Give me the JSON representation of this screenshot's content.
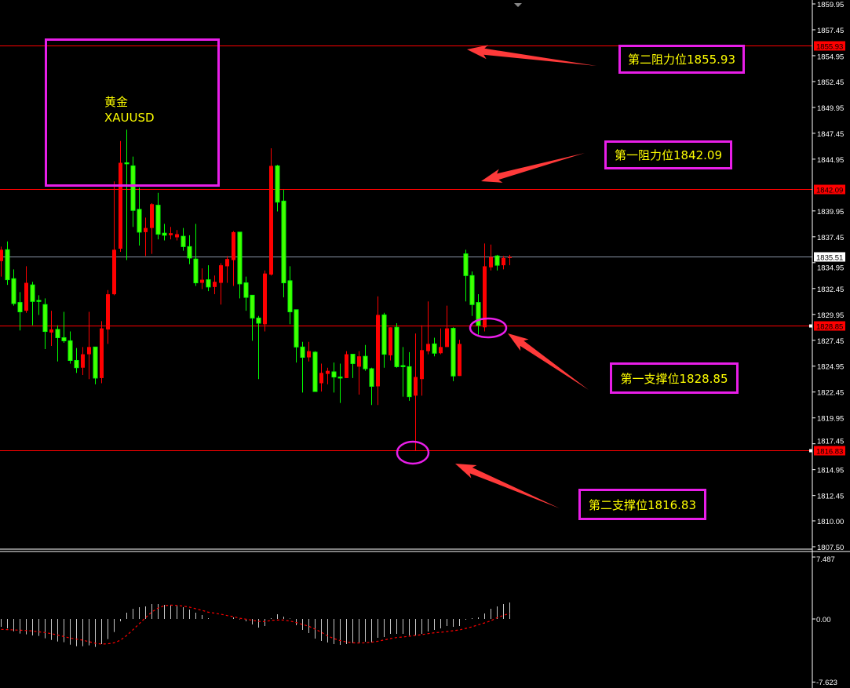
{
  "chart_data": {
    "type": "candlestick",
    "symbol_label": "黄金",
    "symbol": "XAUUSD",
    "up_color": "#ff0000",
    "down_color": "#00ff00",
    "ylim": [
      1807.5,
      1859.95
    ],
    "y_ticks": [
      "1859.95",
      "1857.45",
      "1854.95",
      "1852.45",
      "1849.95",
      "1847.45",
      "1844.95",
      "1839.95",
      "1837.45",
      "1834.95",
      "1832.45",
      "1829.95",
      "1827.45",
      "1824.95",
      "1822.45",
      "1819.95",
      "1817.45",
      "1814.95",
      "1812.45",
      "1810.00",
      "1807.50"
    ],
    "current_price": "1835.51",
    "levels": [
      {
        "price": "1855.93",
        "label": "第二阻力位1855.93",
        "color": "#ff0000"
      },
      {
        "price": "1842.09",
        "label": "第一阻力位1842.09",
        "color": "#ff0000"
      },
      {
        "price": "1828.85",
        "label": "第一支撑位1828.85",
        "color": "#ff0000"
      },
      {
        "price": "1816.83",
        "label": "第二支撑位1816.83",
        "color": "#ff0000"
      }
    ],
    "candles_ohlc": [
      [
        1835.1,
        1836.5,
        1833.6,
        1836.2
      ],
      [
        1836.2,
        1837.0,
        1832.8,
        1833.3
      ],
      [
        1833.4,
        1834.3,
        1830.8,
        1831.0
      ],
      [
        1831.1,
        1832.1,
        1828.4,
        1830.2
      ],
      [
        1830.3,
        1834.6,
        1830.1,
        1833.0
      ],
      [
        1832.8,
        1833.1,
        1828.9,
        1831.2
      ],
      [
        1831.3,
        1831.8,
        1829.9,
        1831.2
      ],
      [
        1830.9,
        1831.5,
        1826.6,
        1828.3
      ],
      [
        1828.2,
        1830.3,
        1826.9,
        1828.5
      ],
      [
        1828.5,
        1828.9,
        1825.4,
        1827.7
      ],
      [
        1827.7,
        1830.2,
        1827.2,
        1827.4
      ],
      [
        1827.4,
        1828.3,
        1825.2,
        1825.5
      ],
      [
        1825.5,
        1826.7,
        1824.3,
        1824.8
      ],
      [
        1824.8,
        1826.8,
        1824.1,
        1826.1
      ],
      [
        1826.1,
        1830.2,
        1823.7,
        1826.8
      ],
      [
        1826.8,
        1826.8,
        1823.2,
        1823.8
      ],
      [
        1823.8,
        1829.3,
        1823.3,
        1828.6
      ],
      [
        1828.5,
        1832.3,
        1827.1,
        1831.9
      ],
      [
        1831.9,
        1842.8,
        1831.8,
        1836.2
      ],
      [
        1836.3,
        1846.7,
        1836.0,
        1844.6
      ],
      [
        1844.6,
        1847.8,
        1835.2,
        1844.5
      ],
      [
        1844.3,
        1845.2,
        1838.4,
        1840.0
      ],
      [
        1840.1,
        1842.2,
        1836.6,
        1837.9
      ],
      [
        1837.9,
        1839.3,
        1835.6,
        1838.3
      ],
      [
        1838.3,
        1840.7,
        1835.8,
        1840.6
      ],
      [
        1840.5,
        1841.7,
        1837.2,
        1837.7
      ],
      [
        1837.8,
        1838.7,
        1837.1,
        1837.6
      ],
      [
        1837.6,
        1838.4,
        1837.2,
        1837.8
      ],
      [
        1837.4,
        1838.1,
        1837.1,
        1837.7
      ],
      [
        1837.5,
        1838.3,
        1836.1,
        1836.5
      ],
      [
        1836.5,
        1837.6,
        1834.8,
        1835.4
      ],
      [
        1835.3,
        1838.7,
        1832.7,
        1833.0
      ],
      [
        1833.0,
        1834.4,
        1832.4,
        1833.3
      ],
      [
        1833.3,
        1834.7,
        1832.2,
        1832.6
      ],
      [
        1832.6,
        1833.7,
        1831.9,
        1833.1
      ],
      [
        1833.0,
        1834.9,
        1830.9,
        1834.7
      ],
      [
        1834.6,
        1835.6,
        1833.0,
        1835.3
      ],
      [
        1835.2,
        1838.0,
        1832.7,
        1837.9
      ],
      [
        1837.9,
        1837.9,
        1831.5,
        1832.9
      ],
      [
        1833.0,
        1833.6,
        1830.3,
        1831.6
      ],
      [
        1831.8,
        1831.8,
        1827.4,
        1829.6
      ],
      [
        1829.6,
        1829.8,
        1823.7,
        1829.1
      ],
      [
        1829.0,
        1834.2,
        1828.3,
        1833.9
      ],
      [
        1833.8,
        1846.0,
        1833.7,
        1844.3
      ],
      [
        1844.3,
        1844.4,
        1839.9,
        1840.8
      ],
      [
        1840.9,
        1842.0,
        1831.6,
        1833.0
      ],
      [
        1833.2,
        1834.6,
        1829.0,
        1830.2
      ],
      [
        1830.4,
        1830.4,
        1825.3,
        1826.8
      ],
      [
        1826.8,
        1827.3,
        1822.4,
        1825.8
      ],
      [
        1825.8,
        1827.3,
        1825.4,
        1826.4
      ],
      [
        1826.3,
        1826.4,
        1822.5,
        1822.5
      ],
      [
        1823.3,
        1825.2,
        1822.5,
        1824.3
      ],
      [
        1824.2,
        1824.8,
        1823.2,
        1824.5
      ],
      [
        1824.4,
        1825.3,
        1822.4,
        1823.9
      ],
      [
        1823.9,
        1825.2,
        1821.4,
        1823.8
      ],
      [
        1823.8,
        1826.4,
        1823.8,
        1826.1
      ],
      [
        1826.1,
        1826.1,
        1823.8,
        1825.2
      ],
      [
        1824.9,
        1826.4,
        1822.2,
        1825.9
      ],
      [
        1825.9,
        1827.0,
        1824.5,
        1824.7
      ],
      [
        1824.7,
        1824.8,
        1821.2,
        1823.0
      ],
      [
        1823.0,
        1831.7,
        1821.2,
        1829.9
      ],
      [
        1829.9,
        1830.1,
        1824.8,
        1826.1
      ],
      [
        1826.0,
        1828.7,
        1825.5,
        1828.7
      ],
      [
        1828.7,
        1829.1,
        1824.8,
        1824.9
      ],
      [
        1825.0,
        1826.8,
        1822.0,
        1824.9
      ],
      [
        1824.9,
        1826.3,
        1821.6,
        1822.0
      ],
      [
        1822.1,
        1828.1,
        1816.8,
        1823.9
      ],
      [
        1823.7,
        1828.9,
        1822.1,
        1826.5
      ],
      [
        1826.4,
        1831.2,
        1826.1,
        1827.1
      ],
      [
        1827.1,
        1827.7,
        1825.9,
        1826.2
      ],
      [
        1826.2,
        1828.6,
        1826.1,
        1826.8
      ],
      [
        1826.8,
        1830.8,
        1826.8,
        1828.6
      ],
      [
        1828.6,
        1828.7,
        1823.5,
        1824.0
      ],
      [
        1824.0,
        1827.5,
        1824.0,
        1827.1
      ],
      [
        1835.8,
        1836.2,
        1831.2,
        1833.7
      ],
      [
        1833.7,
        1834.1,
        1829.8,
        1830.9
      ],
      [
        1831.1,
        1831.9,
        1828.0,
        1828.9
      ],
      [
        1828.7,
        1836.8,
        1828.3,
        1834.6
      ],
      [
        1834.5,
        1836.7,
        1834.2,
        1835.5
      ],
      [
        1835.6,
        1835.7,
        1834.2,
        1834.7
      ],
      [
        1834.7,
        1835.6,
        1834.3,
        1835.4
      ],
      [
        1835.4,
        1835.7,
        1834.7,
        1835.5
      ]
    ],
    "oscillator": {
      "ylim": [
        -7.623,
        7.487
      ],
      "y_ticks": [
        "7.487",
        "0.00",
        "-7.623"
      ],
      "histogram_color": "#c8c8c8",
      "signal_color": "#ff0000",
      "histogram": [
        -0.95,
        -1.14,
        -1.49,
        -1.77,
        -1.86,
        -1.99,
        -2.05,
        -2.34,
        -2.53,
        -2.72,
        -2.81,
        -3.1,
        -3.29,
        -3.29,
        -3.19,
        -3.38,
        -3.03,
        -2.43,
        -1.58,
        -0.28,
        0.76,
        1.23,
        1.42,
        1.52,
        1.8,
        1.8,
        1.71,
        1.71,
        1.58,
        1.42,
        1.14,
        0.76,
        0.47,
        0.09,
        0.0,
        0.0,
        0.0,
        0.19,
        -0.05,
        -0.28,
        -0.66,
        -1.04,
        -0.85,
        0.09,
        0.57,
        0.28,
        0.06,
        -0.76,
        -1.33,
        -1.71,
        -2.37,
        -2.65,
        -2.84,
        -3.03,
        -3.13,
        -3.03,
        -2.94,
        -2.84,
        -2.75,
        -2.84,
        -2.28,
        -2.18,
        -1.8,
        -1.8,
        -1.8,
        -1.99,
        -1.99,
        -1.8,
        -1.52,
        -1.33,
        -1.14,
        -0.85,
        -0.95,
        -0.85,
        -0.09,
        0.09,
        0.19,
        0.66,
        1.23,
        1.52,
        1.8,
        1.99
      ],
      "signal": [
        -1.26,
        -1.29,
        -1.33,
        -1.36,
        -1.4,
        -1.45,
        -1.55,
        -1.64,
        -1.78,
        -1.93,
        -2.12,
        -2.31,
        -2.44,
        -2.56,
        -2.75,
        -2.94,
        -3.03,
        -3.0,
        -2.88,
        -2.56,
        -1.99,
        -1.3,
        -0.57,
        0.16,
        0.85,
        1.33,
        1.61,
        1.67,
        1.64,
        1.55,
        1.42,
        1.23,
        1.04,
        0.82,
        0.7,
        0.57,
        0.41,
        0.28,
        0.09,
        -0.03,
        -0.16,
        -0.28,
        -0.32,
        -0.16,
        -0.13,
        -0.13,
        -0.25,
        -0.44,
        -0.66,
        -0.88,
        -1.23,
        -1.61,
        -2.05,
        -2.37,
        -2.62,
        -2.78,
        -2.88,
        -2.91,
        -2.88,
        -2.81,
        -2.69,
        -2.53,
        -2.37,
        -2.24,
        -2.18,
        -2.09,
        -1.99,
        -1.9,
        -1.77,
        -1.67,
        -1.61,
        -1.52,
        -1.42,
        -1.33,
        -1.14,
        -0.95,
        -0.7,
        -0.47,
        -0.22,
        0.16,
        0.44,
        0.66
      ]
    }
  }
}
